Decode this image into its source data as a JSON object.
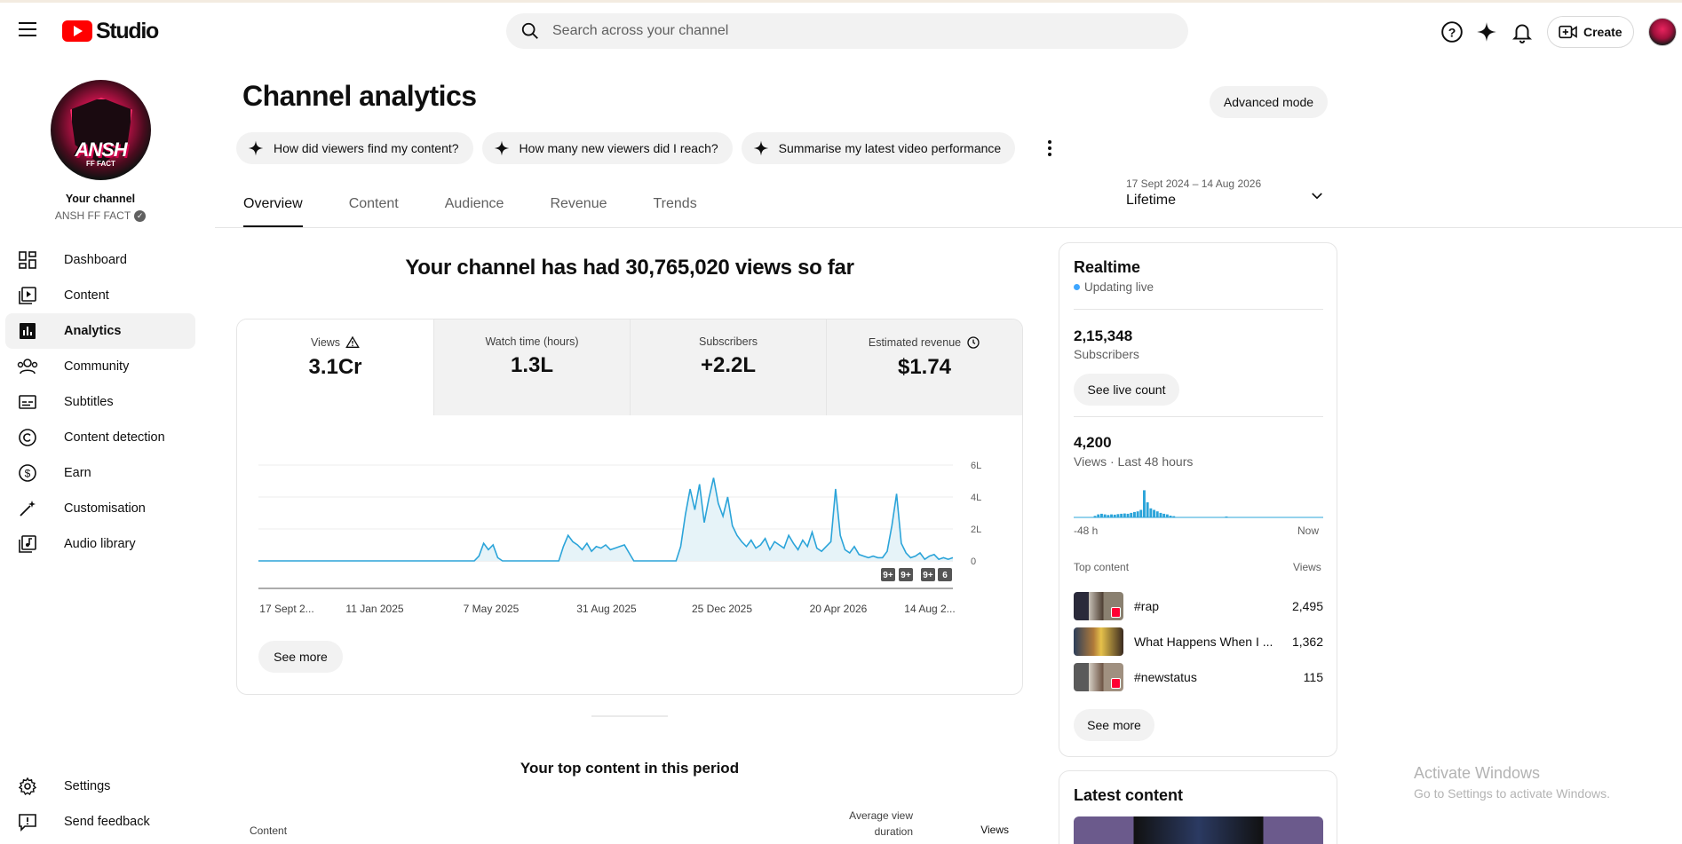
{
  "header": {
    "logo_text": "Studio",
    "search_placeholder": "Search across your channel",
    "create_label": "Create",
    "brand_color": "#ff0000"
  },
  "sidebar": {
    "your_channel": "Your channel",
    "channel_name": "ANSH FF FACT",
    "avatar_text": "ANSH",
    "avatar_subtext": "FF FACT",
    "items": [
      {
        "label": "Dashboard",
        "icon": "dashboard-icon"
      },
      {
        "label": "Content",
        "icon": "content-icon"
      },
      {
        "label": "Analytics",
        "icon": "analytics-icon",
        "active": true
      },
      {
        "label": "Community",
        "icon": "community-icon"
      },
      {
        "label": "Subtitles",
        "icon": "subtitles-icon"
      },
      {
        "label": "Content detection",
        "icon": "copyright-icon"
      },
      {
        "label": "Earn",
        "icon": "dollar-icon"
      },
      {
        "label": "Customisation",
        "icon": "magic-wand-icon"
      },
      {
        "label": "Audio library",
        "icon": "audio-library-icon"
      }
    ],
    "bottom_items": [
      {
        "label": "Settings",
        "icon": "gear-icon"
      },
      {
        "label": "Send feedback",
        "icon": "feedback-icon"
      }
    ]
  },
  "main": {
    "title": "Channel analytics",
    "advanced_mode": "Advanced mode",
    "chips": [
      "How did viewers find my content?",
      "How many new viewers did I reach?",
      "Summarise my latest video performance"
    ],
    "tabs": [
      "Overview",
      "Content",
      "Audience",
      "Revenue",
      "Trends"
    ],
    "active_tab": "Overview",
    "date_range": {
      "range": "17 Sept 2024 – 14 Aug 2026",
      "label": "Lifetime"
    },
    "headline": "Your channel has had 30,765,020 views so far",
    "metrics": [
      {
        "label": "Views",
        "value": "3.1Cr",
        "icon": "warning-icon",
        "active": true
      },
      {
        "label": "Watch time (hours)",
        "value": "1.3L"
      },
      {
        "label": "Subscribers",
        "value": "+2.2L"
      },
      {
        "label": "Estimated revenue",
        "value": "$1.74",
        "icon": "clock-icon"
      }
    ],
    "see_more": "See more",
    "top_content": {
      "title": "Your top content in this period",
      "col_content": "Content",
      "col_avg": "Average view duration",
      "col_views": "Views"
    }
  },
  "chart_data": {
    "type": "line",
    "series": [
      {
        "values": [
          0,
          0,
          0,
          0,
          0,
          0,
          0,
          0,
          0,
          0,
          0,
          0,
          0,
          0,
          0,
          0,
          0,
          0,
          0,
          0,
          0,
          0,
          0,
          0,
          0,
          0,
          0,
          0,
          0,
          0,
          0,
          0,
          0,
          0,
          0,
          0,
          0,
          0,
          0,
          0,
          0,
          0,
          0,
          0,
          0,
          0,
          0,
          0.3,
          1.1,
          0.7,
          1.0,
          0.2,
          0,
          0,
          0,
          0,
          0,
          0,
          0,
          0,
          0,
          0,
          0,
          0,
          0,
          0.9,
          1.6,
          1.2,
          1.0,
          0.7,
          1.1,
          0.6,
          0.9,
          0.8,
          1.0,
          0.7,
          0.8,
          0.9,
          1.0,
          0.5,
          0,
          0,
          0,
          0,
          0,
          0,
          0,
          0,
          0,
          0,
          0.9,
          2.9,
          4.5,
          3.2,
          4.8,
          2.4,
          3.9,
          5.2,
          3.6,
          2.8,
          4.0,
          2.2,
          1.6,
          1.2,
          0.9,
          1.3,
          0.8,
          1.0,
          1.4,
          0.7,
          1.2,
          1.0,
          0.8,
          1.6,
          1.1,
          0.7,
          1.3,
          0.9,
          1.8,
          0.8,
          0.6,
          0.9,
          1.2,
          4.5,
          1.6,
          0.7,
          0.5,
          0.9,
          0.4,
          0.3,
          0.2,
          0.3,
          0.2,
          0.2,
          0.6,
          2.2,
          4.2,
          1.1,
          0.5,
          0.2,
          0.3,
          0.5,
          0.1,
          0.3,
          0.4,
          0.1,
          0.2,
          0.1,
          0.2
        ]
      }
    ],
    "x_tick_labels": [
      "17 Sept 2...",
      "11 Jan 2025",
      "7 May 2025",
      "31 Aug 2025",
      "25 Dec 2025",
      "20 Apr 2026",
      "14 Aug 2..."
    ],
    "y_tick_labels": [
      "6L",
      "4L",
      "2L",
      "0"
    ],
    "ylim": [
      0,
      6
    ],
    "ylabel_unit": "L",
    "color": "#2ba4d9",
    "badges": [
      "9+",
      "9+",
      "9+",
      "6"
    ],
    "grid": true
  },
  "realtime": {
    "title": "Realtime",
    "status": "Updating live",
    "subscribers": "2,15,348",
    "subscribers_label": "Subscribers",
    "see_live_count": "See live count",
    "views": "4,200",
    "views_label": "Views · Last 48 hours",
    "x_start": "-48 h",
    "x_end": "Now",
    "bars": [
      0,
      0,
      0,
      0,
      0,
      0,
      0.05,
      0.1,
      0.12,
      0.1,
      0.08,
      0.1,
      0.09,
      0.11,
      0.12,
      0.13,
      0.12,
      0.15,
      0.18,
      0.2,
      0.25,
      0.9,
      0.5,
      0.3,
      0.25,
      0.2,
      0.15,
      0.12,
      0.1,
      0.06,
      0.04,
      0,
      0,
      0,
      0,
      0,
      0,
      0,
      0,
      0,
      0,
      0,
      0,
      0,
      0,
      0,
      0.03,
      0,
      0,
      0,
      0,
      0,
      0,
      0,
      0,
      0,
      0,
      0,
      0,
      0,
      0,
      0,
      0,
      0,
      0,
      0,
      0,
      0,
      0,
      0,
      0,
      0,
      0,
      0,
      0,
      0
    ],
    "top_content_label": "Top content",
    "views_col": "Views",
    "rows": [
      {
        "title": "#rap",
        "views": "2,495"
      },
      {
        "title": "What Happens When I ...",
        "views": "1,362"
      },
      {
        "title": "#newstatus",
        "views": "115"
      }
    ],
    "see_more": "See more"
  },
  "latest_content": {
    "title": "Latest content"
  },
  "watermark": {
    "line1": "Activate Windows",
    "line2": "Go to Settings to activate Windows."
  }
}
